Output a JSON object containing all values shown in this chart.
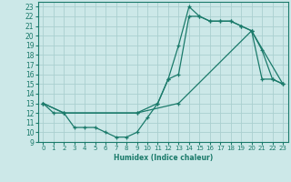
{
  "xlabel": "Humidex (Indice chaleur)",
  "bg_color": "#cce8e8",
  "grid_color": "#aacfcf",
  "line_color": "#1a7a6a",
  "xlim": [
    -0.5,
    23.5
  ],
  "ylim": [
    9,
    23.5
  ],
  "xticks": [
    0,
    1,
    2,
    3,
    4,
    5,
    6,
    7,
    8,
    9,
    10,
    11,
    12,
    13,
    14,
    15,
    16,
    17,
    18,
    19,
    20,
    21,
    22,
    23
  ],
  "yticks": [
    9,
    10,
    11,
    12,
    13,
    14,
    15,
    16,
    17,
    18,
    19,
    20,
    21,
    22,
    23
  ],
  "line1_x": [
    0,
    1,
    2,
    3,
    4,
    5,
    6,
    7,
    8,
    9,
    10,
    11,
    12,
    13,
    14,
    15,
    16,
    17,
    18,
    19,
    20,
    21,
    22,
    23
  ],
  "line1_y": [
    13,
    12,
    12,
    10.5,
    10.5,
    10.5,
    10,
    9.5,
    9.5,
    10,
    11.5,
    13,
    15.5,
    19,
    23,
    22,
    21.5,
    21.5,
    21.5,
    21,
    20.5,
    18.5,
    15.5,
    15
  ],
  "line2_x": [
    0,
    2,
    9,
    11,
    12,
    13,
    14,
    15,
    16,
    17,
    18,
    19,
    20,
    21,
    22,
    23
  ],
  "line2_y": [
    13,
    12,
    12,
    13,
    15.5,
    16,
    22,
    22,
    21.5,
    21.5,
    21.5,
    21,
    20.5,
    15.5,
    15.5,
    15
  ],
  "line3_x": [
    0,
    2,
    9,
    13,
    20,
    23
  ],
  "line3_y": [
    13,
    12,
    12,
    13,
    20.5,
    15
  ]
}
